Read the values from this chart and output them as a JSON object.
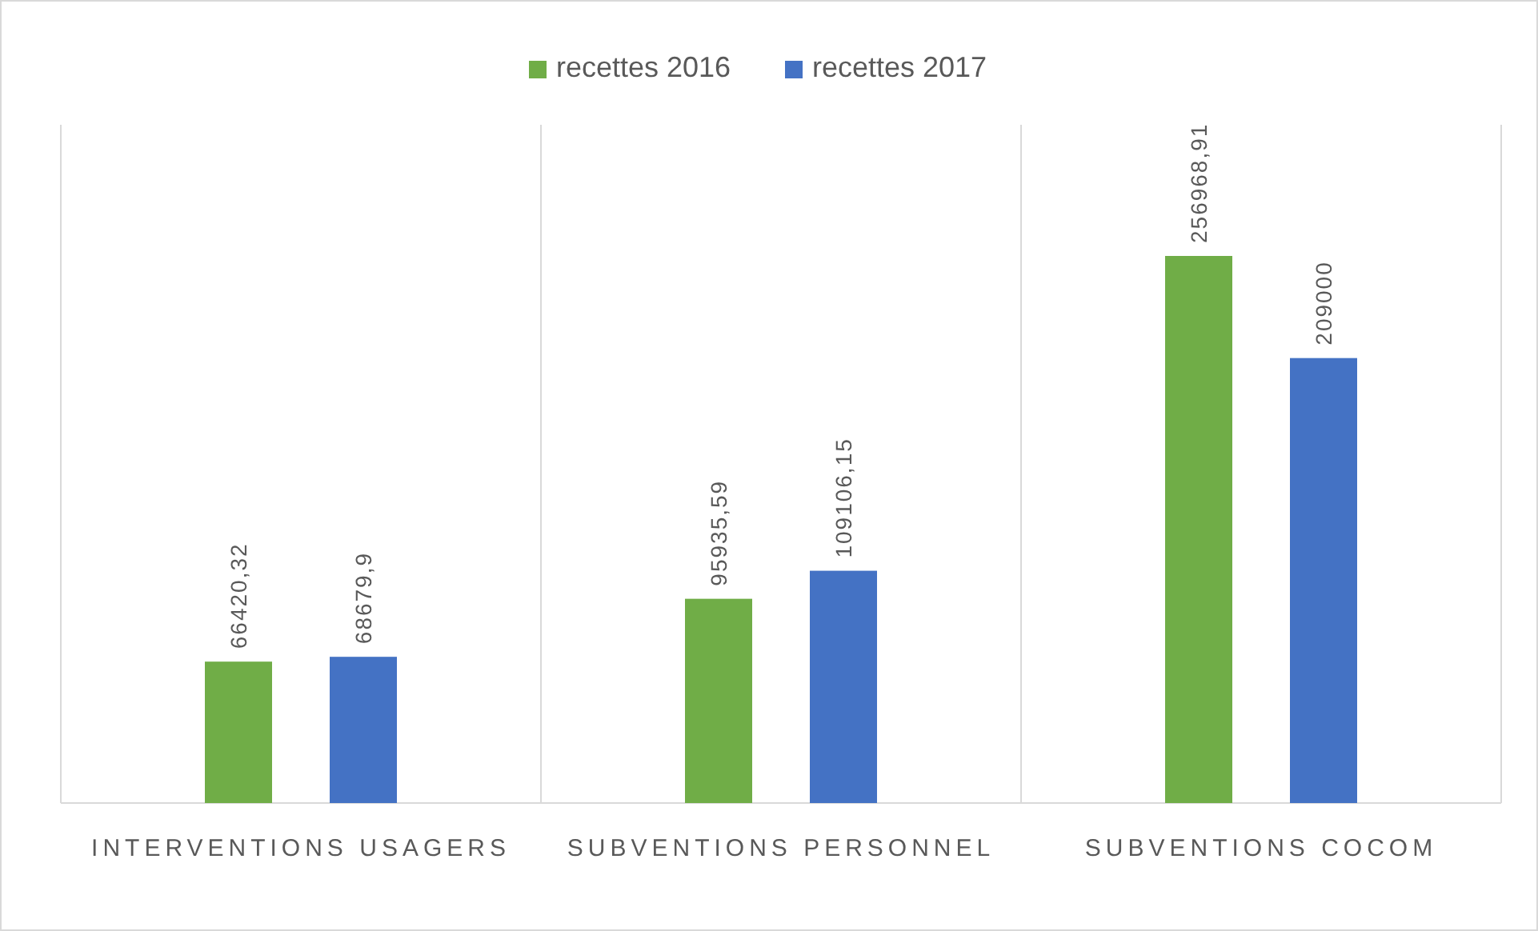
{
  "chart_data": {
    "type": "bar",
    "categories": [
      "INTERVENTIONS USAGERS",
      "SUBVENTIONS PERSONNEL",
      "SUBVENTIONS COCOM"
    ],
    "series": [
      {
        "name": "recettes 2016",
        "color": "#70ad47",
        "values": [
          66420.32,
          95935.59,
          256968.91
        ],
        "value_labels": [
          "66420,32",
          "95935,59",
          "256968,91"
        ]
      },
      {
        "name": "recettes 2017",
        "color": "#4472c4",
        "values": [
          68679.9,
          109106.15,
          209000
        ],
        "value_labels": [
          "68679,9",
          "109106,15",
          "209000"
        ]
      }
    ],
    "legend": "top",
    "grid": "x"
  }
}
